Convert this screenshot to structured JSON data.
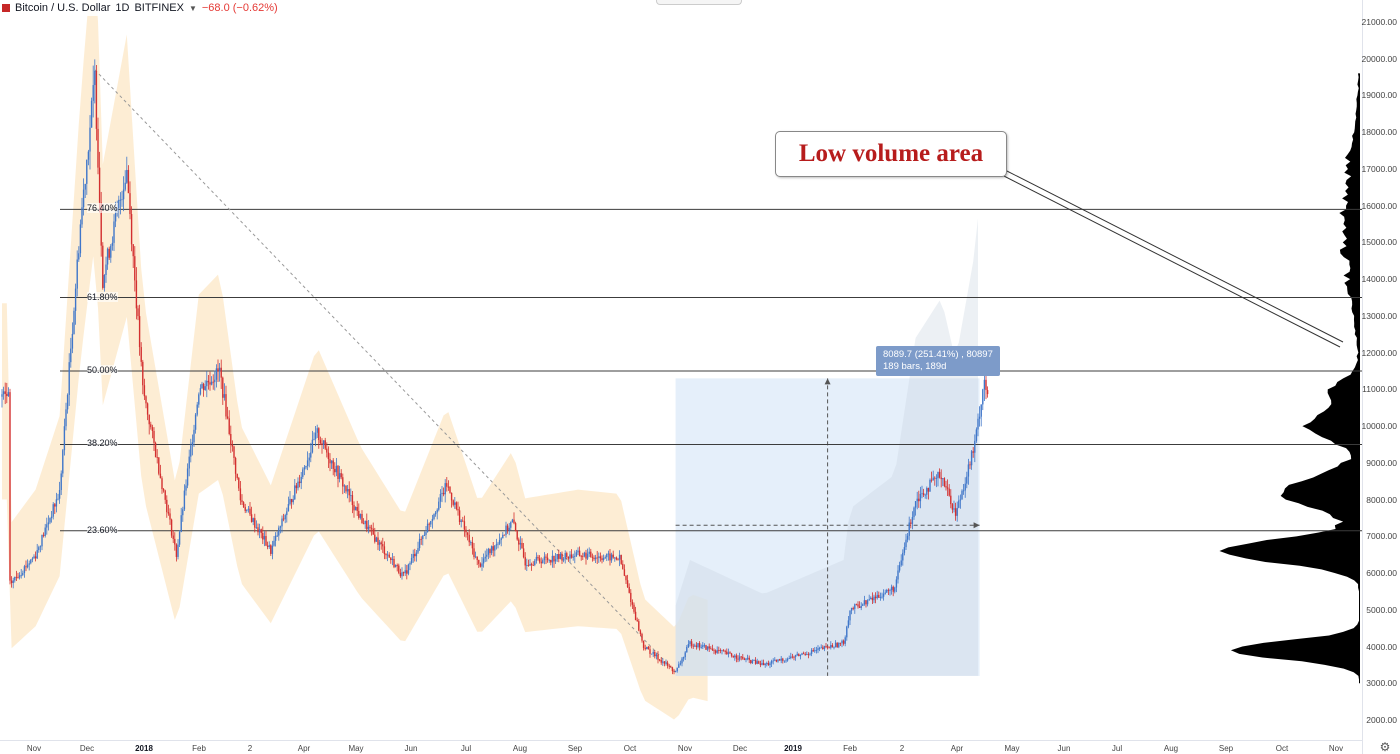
{
  "header": {
    "symbol": "Bitcoin / U.S. Dollar",
    "interval": "1D",
    "exchange": "BITFINEX",
    "change": "−68.0 (−0.62%)"
  },
  "annotation": {
    "callout_text": "Low volume area",
    "measure_line1": "8089.7 (251.41%) , 80897",
    "measure_line2": "189 bars, 189d"
  },
  "colors": {
    "up_candle": "#3f76c9",
    "down_candle": "#d32f2f",
    "band": "#fde9c9",
    "range_fill": "#dce9f8",
    "fib_line": "#3c3c3c"
  },
  "chart_data": {
    "type": "candlestick",
    "title": "Bitcoin / U.S. Dollar",
    "ylim": [
      1600,
      21400
    ],
    "price_ticks": [
      "2000.00",
      "3000.00",
      "4000.00",
      "5000.00",
      "6000.00",
      "7000.00",
      "8000.00",
      "9000.00",
      "10000.00",
      "11000.00",
      "12000.00",
      "13000.00",
      "14000.00",
      "15000.00",
      "16000.00",
      "17000.00",
      "18000.00",
      "19000.00",
      "20000.00",
      "21000.00"
    ],
    "time_ticks": [
      {
        "label": "Nov",
        "bold": false
      },
      {
        "label": "Dec",
        "bold": false
      },
      {
        "label": "2018",
        "bold": true
      },
      {
        "label": "Feb",
        "bold": false
      },
      {
        "label": "2",
        "bold": false
      },
      {
        "label": "Apr",
        "bold": false
      },
      {
        "label": "May",
        "bold": false
      },
      {
        "label": "Jun",
        "bold": false
      },
      {
        "label": "Jul",
        "bold": false
      },
      {
        "label": "Aug",
        "bold": false
      },
      {
        "label": "Sep",
        "bold": false
      },
      {
        "label": "Oct",
        "bold": false
      },
      {
        "label": "Nov",
        "bold": false
      },
      {
        "label": "Dec",
        "bold": false
      },
      {
        "label": "2019",
        "bold": true
      },
      {
        "label": "Feb",
        "bold": false
      },
      {
        "label": "2",
        "bold": false
      },
      {
        "label": "Apr",
        "bold": false
      },
      {
        "label": "May",
        "bold": false
      },
      {
        "label": "Jun",
        "bold": false
      },
      {
        "label": "Jul",
        "bold": false
      },
      {
        "label": "Aug",
        "bold": false
      },
      {
        "label": "Sep",
        "bold": false
      },
      {
        "label": "Oct",
        "bold": false
      },
      {
        "label": "Nov",
        "bold": false
      }
    ],
    "fib_levels": [
      {
        "label": "76.40%",
        "price": 15900
      },
      {
        "label": "61.80%",
        "price": 13500
      },
      {
        "label": "50.00%",
        "price": 11500
      },
      {
        "label": "38.20%",
        "price": 9500
      },
      {
        "label": "23.60%",
        "price": 7150
      }
    ],
    "price_path": [
      {
        "date": "2017-10-25",
        "price": 5700
      },
      {
        "date": "2017-11-10",
        "price": 6500
      },
      {
        "date": "2017-11-25",
        "price": 8200
      },
      {
        "date": "2017-12-08",
        "price": 15500
      },
      {
        "date": "2017-12-17",
        "price": 19500
      },
      {
        "date": "2017-12-22",
        "price": 14000
      },
      {
        "date": "2018-01-06",
        "price": 17000
      },
      {
        "date": "2018-01-16",
        "price": 11000
      },
      {
        "date": "2018-02-06",
        "price": 6500
      },
      {
        "date": "2018-02-20",
        "price": 11000
      },
      {
        "date": "2018-03-05",
        "price": 11500
      },
      {
        "date": "2018-03-18",
        "price": 8000
      },
      {
        "date": "2018-04-06",
        "price": 6600
      },
      {
        "date": "2018-05-05",
        "price": 9800
      },
      {
        "date": "2018-06-01",
        "price": 7500
      },
      {
        "date": "2018-06-28",
        "price": 5900
      },
      {
        "date": "2018-07-25",
        "price": 8400
      },
      {
        "date": "2018-08-14",
        "price": 6200
      },
      {
        "date": "2018-09-04",
        "price": 7400
      },
      {
        "date": "2018-09-12",
        "price": 6300
      },
      {
        "date": "2018-10-15",
        "price": 6500
      },
      {
        "date": "2018-11-10",
        "price": 6400
      },
      {
        "date": "2018-11-25",
        "price": 4000
      },
      {
        "date": "2018-12-15",
        "price": 3300
      },
      {
        "date": "2018-12-24",
        "price": 4100
      },
      {
        "date": "2019-02-08",
        "price": 3500
      },
      {
        "date": "2019-03-30",
        "price": 4100
      },
      {
        "date": "2019-04-03",
        "price": 5000
      },
      {
        "date": "2019-05-01",
        "price": 5600
      },
      {
        "date": "2019-05-14",
        "price": 8000
      },
      {
        "date": "2019-05-30",
        "price": 8700
      },
      {
        "date": "2019-06-08",
        "price": 7600
      },
      {
        "date": "2019-06-20",
        "price": 9500
      },
      {
        "date": "2019-06-26",
        "price": 11300
      },
      {
        "date": "2019-06-28",
        "price": 10800
      }
    ],
    "trend_line": {
      "from": {
        "date": "2017-12-17",
        "price": 19700
      },
      "to": {
        "date": "2018-12-15",
        "price": 3300
      }
    },
    "measure_range": {
      "start_date": "2018-12-15",
      "end_date": "2019-06-23",
      "low": 3200,
      "high": 11300
    }
  }
}
